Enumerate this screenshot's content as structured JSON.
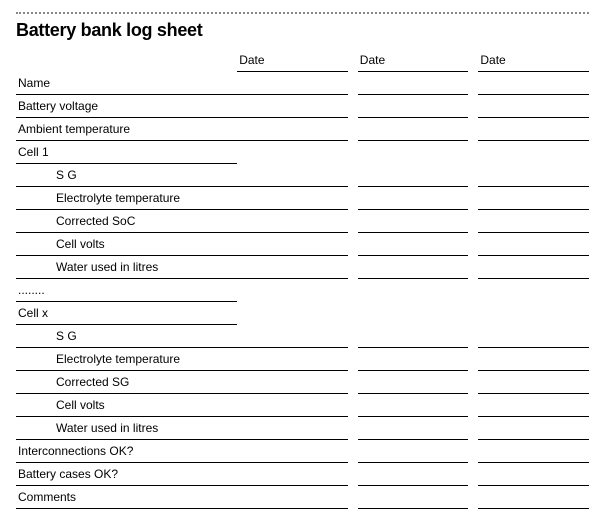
{
  "title": "Battery bank log sheet",
  "headers": {
    "date1": "Date",
    "date2": "Date",
    "date3": "Date"
  },
  "rows": {
    "name": "Name",
    "battery_voltage": "Battery voltage",
    "ambient_temperature": "Ambient temperature",
    "cell1": "Cell 1",
    "cell1_sg": "S G",
    "cell1_electrolyte": "Electrolyte temperature",
    "cell1_soc": "Corrected SoC",
    "cell1_volts": "Cell volts",
    "cell1_water": "Water used in litres",
    "ellipsis": "........",
    "cellx": "Cell x",
    "cellx_sg": "S G",
    "cellx_electrolyte": "Electrolyte temperature",
    "cellx_sg2": "Corrected SG",
    "cellx_volts": "Cell volts",
    "cellx_water": "Water used in litres",
    "interconnections": "Interconnections OK?",
    "battery_cases": "Battery cases OK?",
    "comments": "Comments"
  },
  "colors": {
    "text": "#000000",
    "border": "#000000",
    "dotted": "#888888",
    "background": "#ffffff"
  },
  "font": {
    "title_size": 18,
    "body_size": 12,
    "family": "Arial"
  }
}
